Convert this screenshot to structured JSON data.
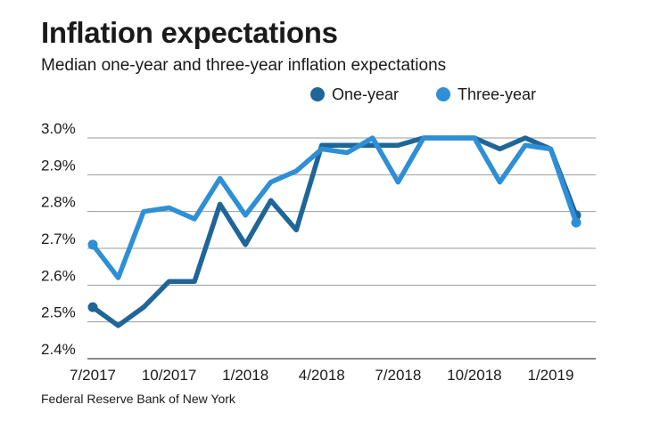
{
  "title": "Inflation expectations",
  "subtitle": "Median one-year and three-year inflation expectations",
  "source": "Federal Reserve Bank of New York",
  "chart_data": {
    "type": "line",
    "title": "Inflation expectations",
    "subtitle": "Median one-year and three-year inflation expectations",
    "xlabel": "",
    "ylabel": "",
    "x": [
      "7/2017",
      "8/2017",
      "9/2017",
      "10/2017",
      "11/2017",
      "12/2017",
      "1/2018",
      "2/2018",
      "3/2018",
      "4/2018",
      "5/2018",
      "6/2018",
      "7/2018",
      "8/2018",
      "9/2018",
      "10/2018",
      "11/2018",
      "12/2018",
      "1/2019",
      "2/2019"
    ],
    "x_tick_labels": [
      "7/2017",
      "10/2017",
      "1/2018",
      "4/2018",
      "7/2018",
      "10/2018",
      "1/2019"
    ],
    "y_ticks": [
      "2.4%",
      "2.5%",
      "2.6%",
      "2.7%",
      "2.8%",
      "2.9%",
      "3.0%"
    ],
    "ylim": [
      2.4,
      3.0
    ],
    "grid": "horizontal",
    "legend_position": "top-right",
    "series": [
      {
        "name": "One-year",
        "color": "#1f6698",
        "values": [
          2.54,
          2.49,
          2.54,
          2.61,
          2.61,
          2.82,
          2.71,
          2.83,
          2.75,
          2.98,
          2.98,
          2.98,
          2.98,
          3.0,
          3.0,
          3.0,
          2.97,
          3.0,
          2.97,
          2.79
        ]
      },
      {
        "name": "Three-year",
        "color": "#2e8fd6",
        "values": [
          2.71,
          2.62,
          2.8,
          2.81,
          2.78,
          2.89,
          2.79,
          2.88,
          2.91,
          2.97,
          2.96,
          3.0,
          2.88,
          3.0,
          3.0,
          3.0,
          2.88,
          2.98,
          2.97,
          2.77
        ]
      }
    ]
  }
}
